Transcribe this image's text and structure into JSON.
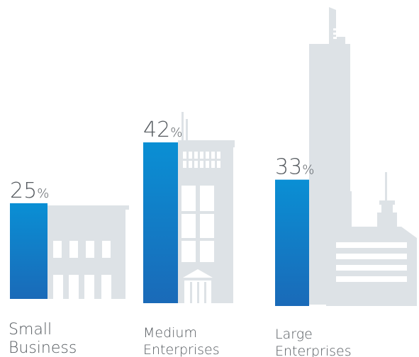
{
  "chart_data": {
    "type": "bar",
    "title": "",
    "xlabel": "",
    "ylabel": "",
    "ylim": [
      0,
      42
    ],
    "unit_symbol": "%",
    "categories": [
      [
        "Small",
        "Business"
      ],
      [
        "Medium",
        "Enterprises"
      ],
      [
        "Large",
        "Enterprises"
      ]
    ],
    "values": [
      25,
      42,
      33
    ],
    "colors": {
      "bar_top": "#0a8fd4",
      "bar_bottom": "#1a6ab8",
      "building": "#dde2e6",
      "window": "#ffffff",
      "text": "#555a5f"
    }
  }
}
